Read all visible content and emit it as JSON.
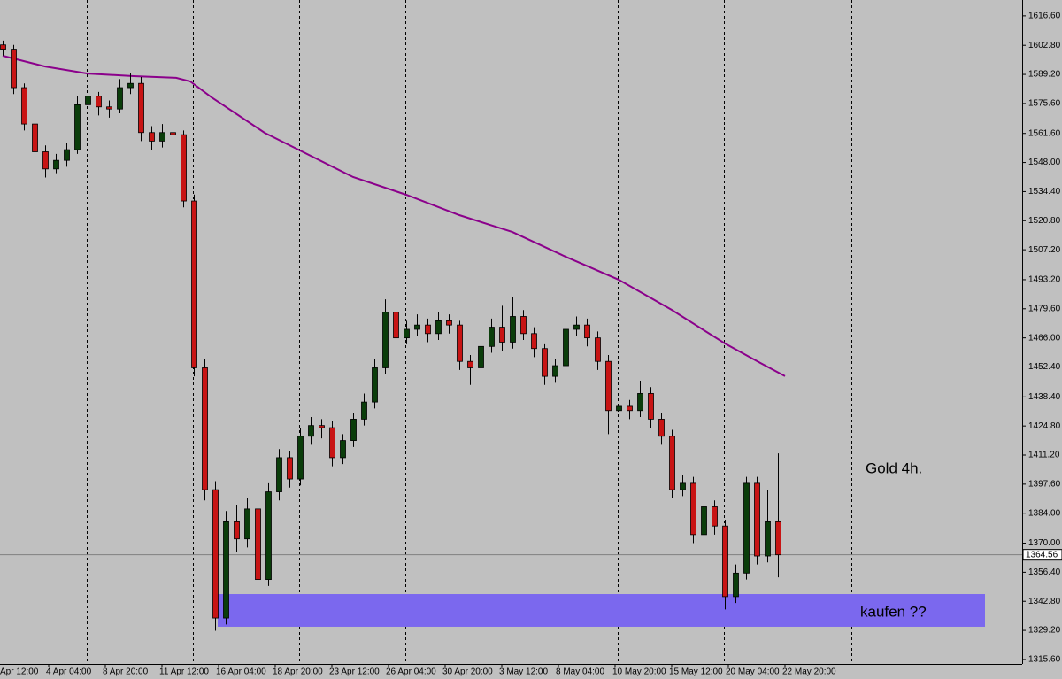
{
  "chart_data": {
    "type": "candlestick",
    "x": [
      0,
      3,
      6,
      9,
      12,
      15,
      18,
      21,
      24,
      27,
      30,
      33,
      36,
      39,
      42,
      45,
      48,
      51,
      54,
      57,
      60,
      63,
      66,
      69,
      72,
      75,
      78,
      81,
      84,
      87,
      90,
      93,
      96,
      99,
      102,
      105,
      108,
      111,
      114,
      117,
      120,
      123,
      126,
      129,
      132,
      135,
      138,
      141,
      144,
      147,
      150,
      153,
      156,
      159,
      162,
      165,
      168,
      171,
      174,
      177,
      180,
      183,
      186,
      189,
      192,
      195,
      198,
      201,
      204,
      207,
      210,
      213,
      216,
      219
    ],
    "open": [
      1603,
      1601,
      1583,
      1566,
      1553,
      1545,
      1549,
      1554,
      1575,
      1579,
      1574,
      1573,
      1583,
      1585,
      1562,
      1558,
      1562,
      1561,
      1530,
      1452,
      1395,
      1335,
      1380,
      1372,
      1386,
      1353,
      1394,
      1410,
      1400,
      1420,
      1425,
      1424,
      1410,
      1418,
      1428,
      1436,
      1452,
      1478,
      1466,
      1470,
      1472,
      1468,
      1474,
      1472,
      1455,
      1452,
      1462,
      1471,
      1464,
      1476,
      1468,
      1461,
      1448,
      1453,
      1470,
      1472,
      1466,
      1455,
      1432,
      1434,
      1432,
      1440,
      1428,
      1420,
      1395,
      1398,
      1374,
      1387,
      1378,
      1345,
      1356,
      1398,
      1364,
      1380
    ],
    "high": [
      1605,
      1603,
      1585,
      1568,
      1556,
      1552,
      1557,
      1579,
      1583,
      1581,
      1577,
      1587,
      1590,
      1588,
      1565,
      1566,
      1565,
      1563,
      1533,
      1456,
      1399,
      1385,
      1388,
      1391,
      1390,
      1398,
      1414,
      1413,
      1424,
      1429,
      1428,
      1427,
      1421,
      1431,
      1440,
      1456,
      1484,
      1481,
      1474,
      1477,
      1475,
      1478,
      1477,
      1474,
      1458,
      1466,
      1475,
      1481,
      1485,
      1479,
      1471,
      1463,
      1456,
      1474,
      1476,
      1475,
      1469,
      1458,
      1438,
      1437,
      1446,
      1443,
      1431,
      1423,
      1402,
      1401,
      1391,
      1390,
      1381,
      1360,
      1401,
      1401,
      1395,
      1412
    ],
    "low": [
      1598,
      1580,
      1563,
      1550,
      1541,
      1543,
      1546,
      1552,
      1572,
      1570,
      1569,
      1571,
      1580,
      1558,
      1554,
      1555,
      1556,
      1527,
      1448,
      1390,
      1329,
      1332,
      1366,
      1368,
      1339,
      1350,
      1390,
      1396,
      1397,
      1416,
      1419,
      1406,
      1407,
      1415,
      1425,
      1433,
      1449,
      1462,
      1463,
      1467,
      1464,
      1465,
      1468,
      1451,
      1444,
      1449,
      1459,
      1460,
      1461,
      1465,
      1457,
      1444,
      1445,
      1450,
      1467,
      1462,
      1451,
      1421,
      1429,
      1428,
      1429,
      1424,
      1416,
      1391,
      1392,
      1370,
      1371,
      1374,
      1339,
      1342,
      1353,
      1360,
      1361,
      1354
    ],
    "close": [
      1601,
      1583,
      1566,
      1553,
      1545,
      1549,
      1554,
      1575,
      1579,
      1574,
      1573,
      1583,
      1585,
      1562,
      1558,
      1562,
      1561,
      1530,
      1452,
      1395,
      1335,
      1380,
      1372,
      1386,
      1353,
      1394,
      1410,
      1400,
      1420,
      1425,
      1424,
      1410,
      1418,
      1428,
      1436,
      1452,
      1478,
      1466,
      1470,
      1472,
      1468,
      1474,
      1472,
      1455,
      1452,
      1462,
      1471,
      1464,
      1476,
      1468,
      1461,
      1448,
      1453,
      1470,
      1472,
      1466,
      1455,
      1432,
      1434,
      1432,
      1440,
      1428,
      1420,
      1395,
      1398,
      1374,
      1387,
      1378,
      1345,
      1356,
      1398,
      1364,
      1380,
      1364.56
    ],
    "up_color": "#0a3d0a",
    "down_color": "#c81414",
    "ma": {
      "color": "#8b008b",
      "x": [
        0,
        12,
        24,
        37,
        49,
        53,
        59,
        74,
        84,
        99,
        114,
        129,
        144,
        159,
        174,
        189,
        204,
        214,
        221
      ],
      "values": [
        1597.9,
        1592.9,
        1589.6,
        1588.4,
        1587.6,
        1585.9,
        1578.5,
        1561.9,
        1553.6,
        1541.2,
        1532.9,
        1523.4,
        1515.5,
        1504,
        1493.2,
        1479.1,
        1463.4,
        1454.3,
        1448.1
      ]
    },
    "zone": {
      "xlim": [
        60.75,
        277.5
      ],
      "ylim": [
        1330.9,
        1346.2
      ],
      "color": "#7b68ee"
    },
    "last_price": 1364.56,
    "xlim": [
      -0.75,
      288
    ],
    "ylim": [
      1313.5,
      1624.0
    ],
    "xticks": [
      {
        "value": -3,
        "label": "Apr 12:00"
      },
      {
        "value": 13,
        "label": "4 Apr 04:00"
      },
      {
        "value": 29,
        "label": "8 Apr 20:00"
      },
      {
        "value": 45,
        "label": "11 Apr 12:00"
      },
      {
        "value": 61,
        "label": "16 Apr 04:00"
      },
      {
        "value": 77,
        "label": "18 Apr 20:00"
      },
      {
        "value": 93,
        "label": "23 Apr 12:00"
      },
      {
        "value": 109,
        "label": "26 Apr 04:00"
      },
      {
        "value": 125,
        "label": "30 Apr 20:00"
      },
      {
        "value": 141,
        "label": "3 May 12:00"
      },
      {
        "value": 157,
        "label": "8 May 04:00"
      },
      {
        "value": 173,
        "label": "10 May 20:00"
      },
      {
        "value": 189,
        "label": "15 May 12:00"
      },
      {
        "value": 205,
        "label": "20 May 04:00"
      },
      {
        "value": 221,
        "label": "22 May 20:00"
      }
    ],
    "xgrid": [
      23.75,
      53.75,
      83.75,
      113.75,
      143.75,
      173.75,
      203.75,
      239.75
    ],
    "yticks": [
      {
        "value": 1616.6,
        "label": "1616.60"
      },
      {
        "value": 1602.8,
        "label": "1602.80"
      },
      {
        "value": 1589.2,
        "label": "1589.20"
      },
      {
        "value": 1575.6,
        "label": "1575.60"
      },
      {
        "value": 1561.6,
        "label": "1561.60"
      },
      {
        "value": 1548.0,
        "label": "1548.00"
      },
      {
        "value": 1534.4,
        "label": "1534.40"
      },
      {
        "value": 1520.8,
        "label": "1520.80"
      },
      {
        "value": 1507.2,
        "label": "1507.20"
      },
      {
        "value": 1493.2,
        "label": "1493.20"
      },
      {
        "value": 1479.6,
        "label": "1479.60"
      },
      {
        "value": 1466.0,
        "label": "1466.00"
      },
      {
        "value": 1452.4,
        "label": "1452.40"
      },
      {
        "value": 1438.4,
        "label": "1438.40"
      },
      {
        "value": 1424.8,
        "label": "1424.80"
      },
      {
        "value": 1411.2,
        "label": "1411.20"
      },
      {
        "value": 1397.6,
        "label": "1397.60"
      },
      {
        "value": 1384.0,
        "label": "1384.00"
      },
      {
        "value": 1370.0,
        "label": "1370.00"
      },
      {
        "value": 1356.4,
        "label": "1356.40"
      },
      {
        "value": 1342.8,
        "label": "1342.80"
      },
      {
        "value": 1329.2,
        "label": "1329.20"
      },
      {
        "value": 1315.6,
        "label": "1315.60"
      }
    ],
    "annotations": [
      "Gold 4h.",
      "kaufen ??"
    ]
  }
}
